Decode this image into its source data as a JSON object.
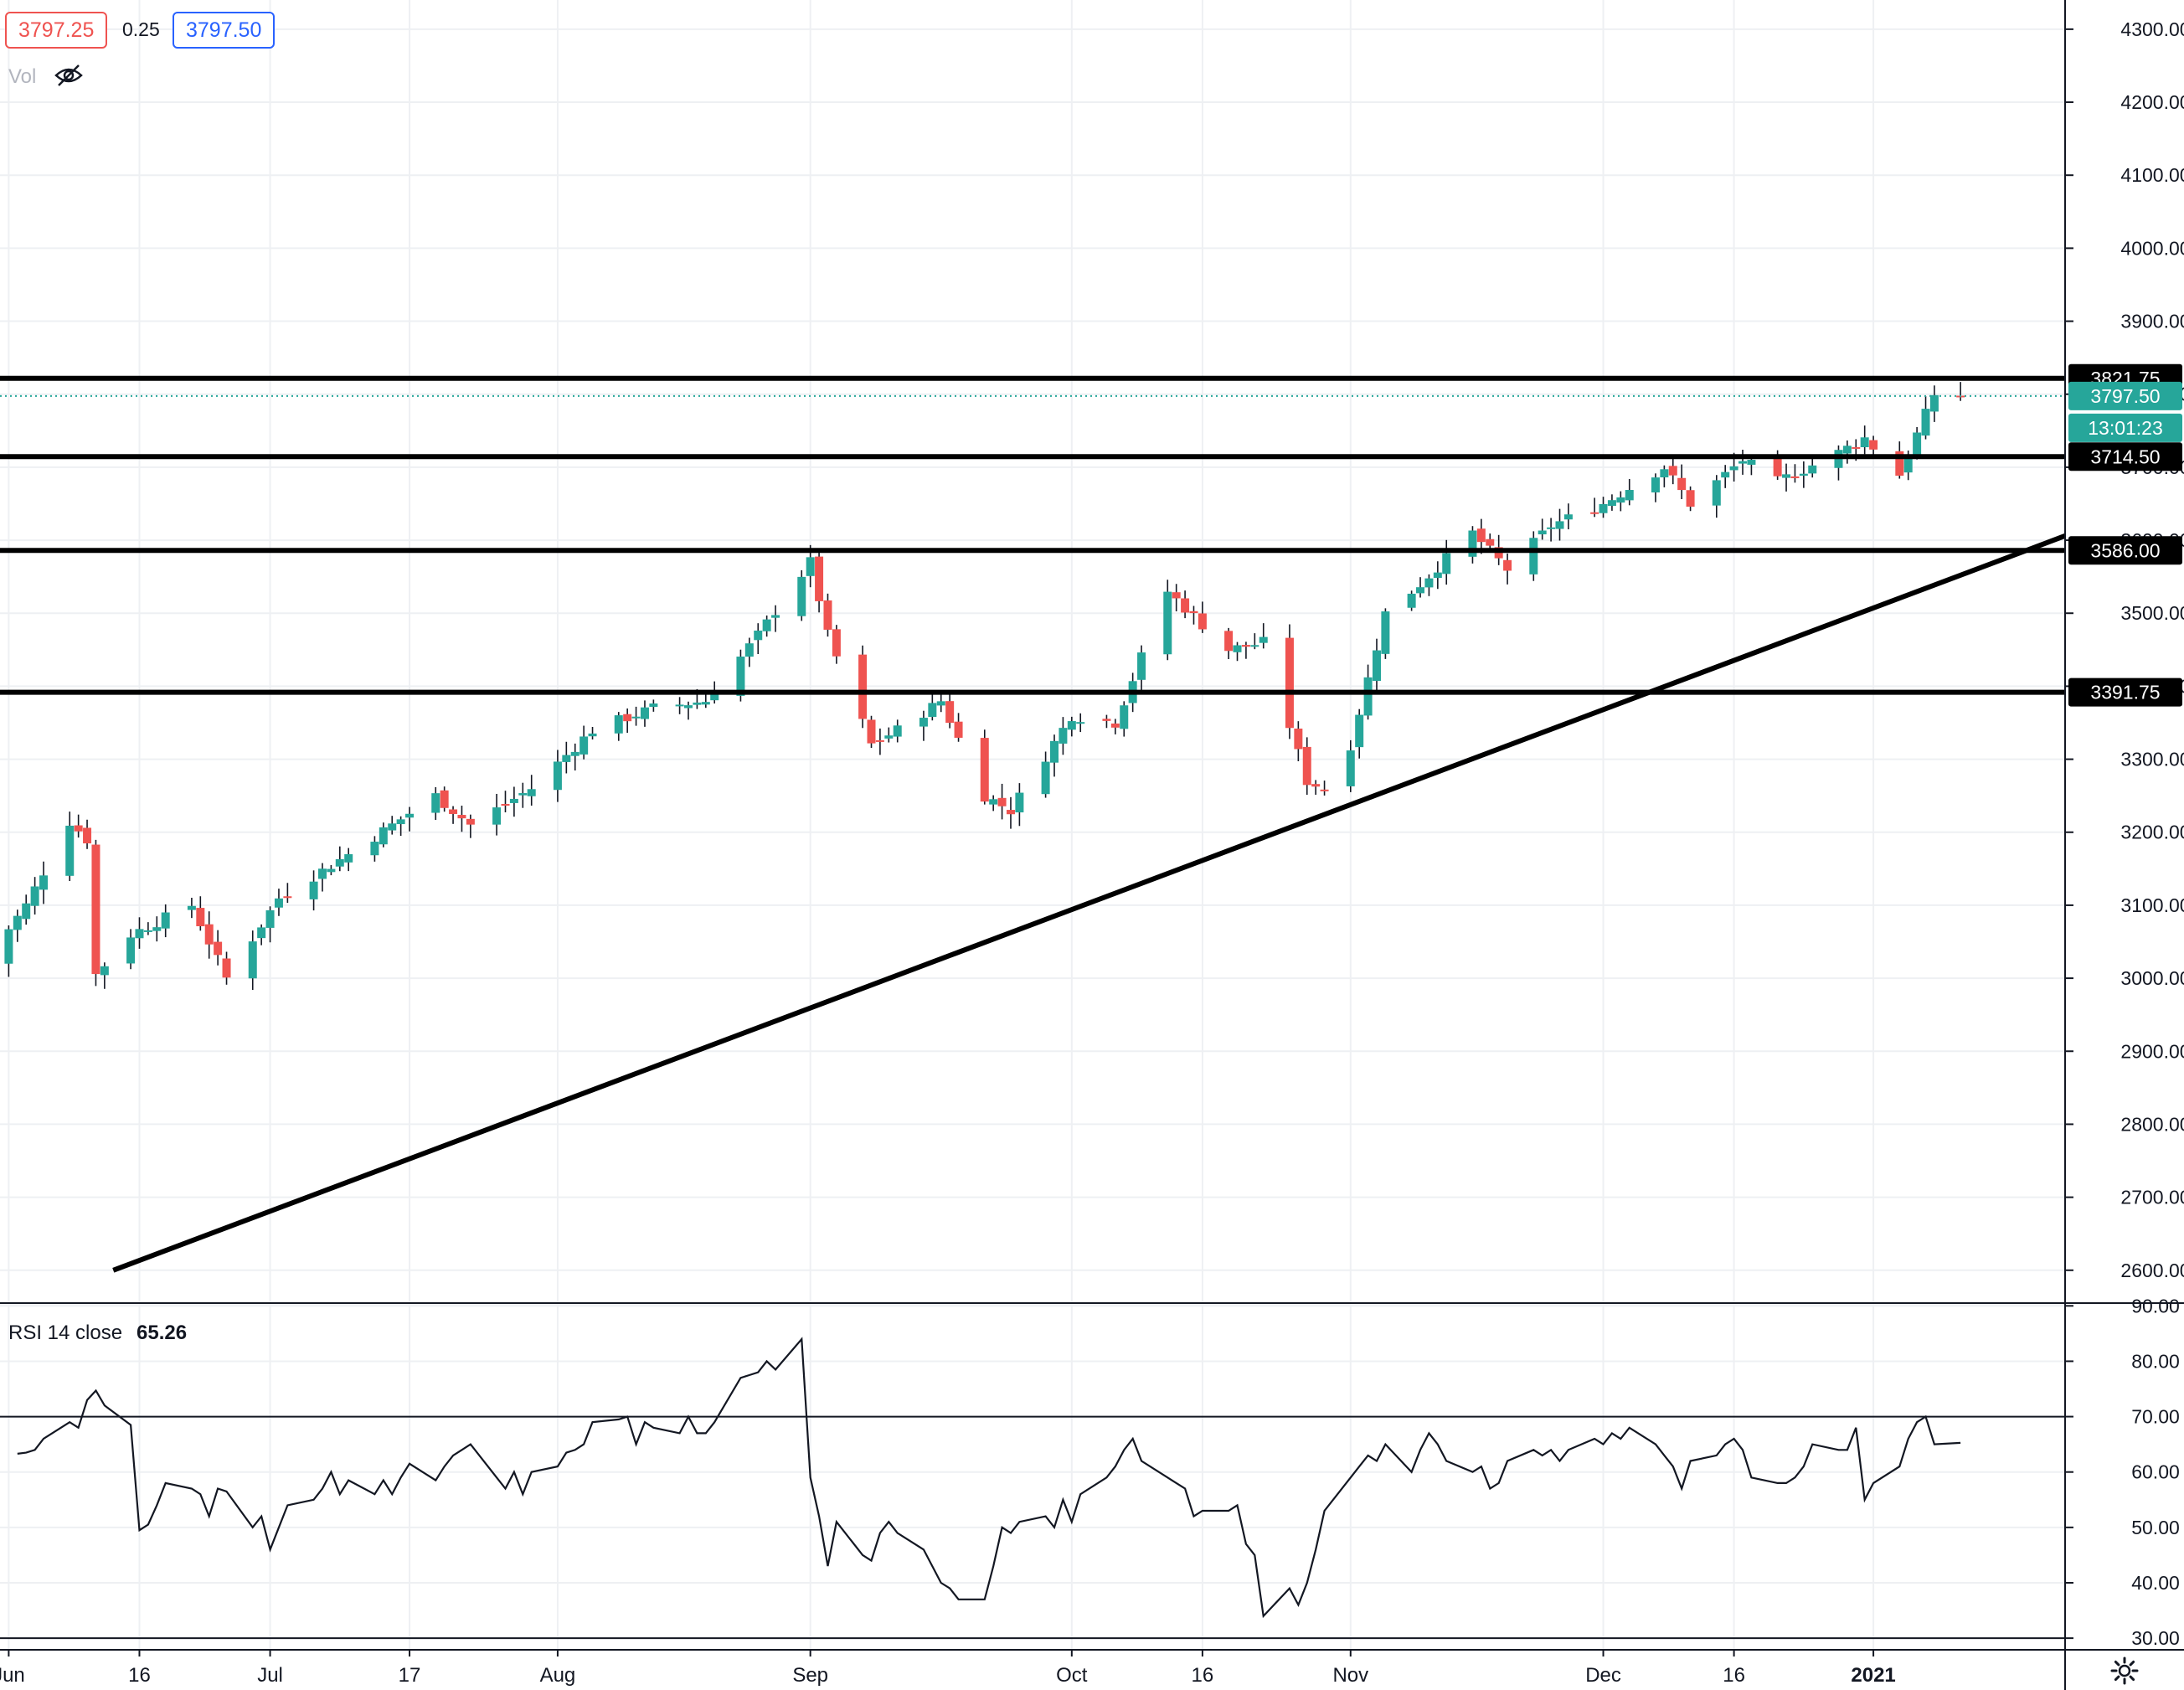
{
  "header": {
    "bid": "3797.25",
    "spread": "0.25",
    "ask": "3797.50",
    "vol_label": "Vol",
    "vol_icon": "eye-off-icon"
  },
  "rsi_panel": {
    "label": "RSI 14 close",
    "value": "65.26"
  },
  "settings_icon": "gear-icon",
  "colors": {
    "up": "#26a69a",
    "down": "#ef5350",
    "bid": "#ef5350",
    "ask": "#2962ff",
    "line": "#000000",
    "grid": "#eef0f3",
    "last_price_tag": "#26a69a"
  },
  "chart_data": [
    {
      "type": "candlestick",
      "x_ticks": [
        {
          "label": "Jun",
          "date": "2020-06-01"
        },
        {
          "label": "16",
          "date": "2020-06-16"
        },
        {
          "label": "Jul",
          "date": "2020-07-01"
        },
        {
          "label": "17",
          "date": "2020-07-17"
        },
        {
          "label": "Aug",
          "date": "2020-08-03"
        },
        {
          "label": "Sep",
          "date": "2020-09-01"
        },
        {
          "label": "Oct",
          "date": "2020-10-01"
        },
        {
          "label": "16",
          "date": "2020-10-16"
        },
        {
          "label": "Nov",
          "date": "2020-11-02"
        },
        {
          "label": "Dec",
          "date": "2020-12-01"
        },
        {
          "label": "16",
          "date": "2020-12-16"
        },
        {
          "label": "2021",
          "date": "2021-01-01",
          "bold": true
        }
      ],
      "x_range": [
        "2020-05-31",
        "2021-01-23"
      ],
      "y_ticks": [
        "4300.00",
        "4200.00",
        "4100.00",
        "4000.00",
        "3900.00",
        "3800.00",
        "3700.00",
        "3600.00",
        "3500.00",
        "3400.00",
        "3300.00",
        "3200.00",
        "3100.00",
        "3000.00",
        "2900.00",
        "2800.00",
        "2700.00",
        "2600.00"
      ],
      "y_range": [
        2555,
        4340
      ],
      "grid": true,
      "anchors": [
        {
          "date": "2020-05-29",
          "price": 3020
        },
        {
          "date": "2020-06-03",
          "price": 3100
        },
        {
          "date": "2020-06-08",
          "price": 3215
        },
        {
          "date": "2020-06-10",
          "price": 3190
        },
        {
          "date": "2020-06-11",
          "price": 3005
        },
        {
          "date": "2020-06-15",
          "price": 3060
        },
        {
          "date": "2020-06-22",
          "price": 3100
        },
        {
          "date": "2020-06-26",
          "price": 3000
        },
        {
          "date": "2020-07-02",
          "price": 3110
        },
        {
          "date": "2020-07-10",
          "price": 3170
        },
        {
          "date": "2020-07-20",
          "price": 3250
        },
        {
          "date": "2020-07-24",
          "price": 3210
        },
        {
          "date": "2020-07-31",
          "price": 3260
        },
        {
          "date": "2020-08-07",
          "price": 3340
        },
        {
          "date": "2020-08-14",
          "price": 3370
        },
        {
          "date": "2020-08-20",
          "price": 3380
        },
        {
          "date": "2020-08-26",
          "price": 3470
        },
        {
          "date": "2020-09-01",
          "price": 3570
        },
        {
          "date": "2020-09-03",
          "price": 3470
        },
        {
          "date": "2020-09-08",
          "price": 3320
        },
        {
          "date": "2020-09-11",
          "price": 3340
        },
        {
          "date": "2020-09-16",
          "price": 3380
        },
        {
          "date": "2020-09-21",
          "price": 3250
        },
        {
          "date": "2020-09-24",
          "price": 3230
        },
        {
          "date": "2020-10-01",
          "price": 3360
        },
        {
          "date": "2020-10-06",
          "price": 3350
        },
        {
          "date": "2020-10-12",
          "price": 3530
        },
        {
          "date": "2020-10-19",
          "price": 3450
        },
        {
          "date": "2020-10-23",
          "price": 3460
        },
        {
          "date": "2020-10-28",
          "price": 3270
        },
        {
          "date": "2020-10-30",
          "price": 3260
        },
        {
          "date": "2020-11-02",
          "price": 3320
        },
        {
          "date": "2020-11-06",
          "price": 3500
        },
        {
          "date": "2020-11-10",
          "price": 3540
        },
        {
          "date": "2020-11-16",
          "price": 3610
        },
        {
          "date": "2020-11-20",
          "price": 3560
        },
        {
          "date": "2020-11-25",
          "price": 3620
        },
        {
          "date": "2020-12-01",
          "price": 3650
        },
        {
          "date": "2020-12-08",
          "price": 3700
        },
        {
          "date": "2020-12-11",
          "price": 3650
        },
        {
          "date": "2020-12-17",
          "price": 3710
        },
        {
          "date": "2020-12-21",
          "price": 3680
        },
        {
          "date": "2020-12-28",
          "price": 3720
        },
        {
          "date": "2020-12-31",
          "price": 3740
        },
        {
          "date": "2021-01-04",
          "price": 3690
        },
        {
          "date": "2021-01-08",
          "price": 3800
        },
        {
          "date": "2021-01-11",
          "price": 3797.5
        }
      ],
      "horizontal_levels": [
        {
          "price": 3821.75,
          "label": "3821.75"
        },
        {
          "price": 3714.5,
          "label": "3714.50"
        },
        {
          "price": 3586.0,
          "label": "3586.00"
        },
        {
          "price": 3391.75,
          "label": "3391.75"
        }
      ],
      "trendline": [
        {
          "date": "2020-06-13",
          "price": 2600
        },
        {
          "date": "2021-01-23",
          "price": 3606
        }
      ],
      "last_price": {
        "price": 3797.5,
        "label": "3797.50",
        "countdown": "13:01:23"
      }
    },
    {
      "type": "line",
      "series": [
        {
          "name": "RSI 14 close",
          "values": [
            63.3,
            63.5,
            64,
            66,
            69,
            68,
            73,
            74.7,
            72,
            68.5,
            49.5,
            50.5,
            54,
            58,
            57,
            56,
            52,
            57,
            56.5,
            50,
            52,
            46,
            50,
            54,
            55,
            57,
            60,
            56,
            58.5,
            56,
            58.5,
            56,
            59,
            61.5,
            58.5,
            61,
            63,
            64,
            65,
            59,
            57,
            60,
            56,
            60,
            61,
            63.5,
            64,
            65,
            69,
            69.5,
            70,
            65,
            69,
            68,
            67,
            70,
            67,
            67,
            69,
            77,
            77.5,
            78,
            80,
            78.5,
            84,
            59,
            52,
            43,
            51,
            45,
            44,
            49,
            51,
            49,
            46,
            43,
            40,
            39,
            37,
            37,
            43,
            50,
            49,
            51,
            52,
            50,
            55,
            51,
            56,
            59,
            61,
            64,
            66,
            62,
            59,
            58,
            57,
            52,
            53,
            53,
            54,
            47,
            45,
            34,
            39,
            36,
            40,
            46,
            53,
            59,
            61,
            63,
            62,
            65,
            60,
            64,
            67,
            65,
            62,
            60,
            61,
            57,
            58,
            62,
            64,
            63,
            64,
            62,
            64,
            66,
            65,
            67,
            66,
            68,
            65,
            63,
            61,
            57,
            62,
            63,
            65,
            66,
            64,
            59,
            58,
            58,
            59,
            61,
            65,
            64,
            64,
            68,
            55,
            58,
            61,
            66,
            69,
            70,
            65,
            65.26
          ]
        }
      ],
      "y_ticks": [
        "90.00",
        "80.00",
        "70.00",
        "60.00",
        "50.00",
        "40.00",
        "30.00"
      ],
      "y_range": [
        27.9,
        90.5
      ],
      "reference_lines": [
        70,
        30
      ],
      "grid": true
    }
  ]
}
